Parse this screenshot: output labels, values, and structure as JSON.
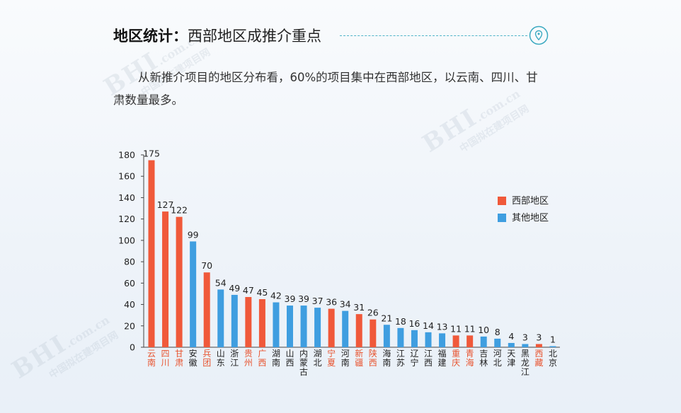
{
  "header": {
    "title_bold": "地区统计：",
    "title_rest": "西部地区成推介重点",
    "pin_icon": "location-pin-icon",
    "accent_color": "#3aa9c0"
  },
  "intro": {
    "text": "从新推介项目的地区分布看，60%的项目集中在西部地区，以云南、四川、甘肃数量最多。"
  },
  "watermark": {
    "brand": "BHI",
    "domain": ".com.cn",
    "tagline": "中国拟在建项目网"
  },
  "chart_data": {
    "type": "bar",
    "title": "",
    "xlabel": "",
    "ylabel": "",
    "ylim": [
      0,
      180
    ],
    "yticks": [
      0,
      20,
      40,
      60,
      80,
      100,
      120,
      140,
      160,
      180
    ],
    "grid": false,
    "legend_position": "right",
    "legend": [
      {
        "key": "west",
        "name": "西部地区",
        "color": "#f0593a"
      },
      {
        "key": "other",
        "name": "其他地区",
        "color": "#3f9ee0"
      }
    ],
    "categories": [
      "云南",
      "四川",
      "甘肃",
      "安徽",
      "兵团",
      "山东",
      "浙江",
      "贵州",
      "广西",
      "湖南",
      "山西",
      "内蒙古",
      "湖北",
      "宁夏",
      "河南",
      "新疆",
      "陕西",
      "海南",
      "江苏",
      "辽宁",
      "江西",
      "福建",
      "重庆",
      "青海",
      "吉林",
      "河北",
      "天津",
      "黑龙江",
      "西藏",
      "北京"
    ],
    "values": [
      175,
      127,
      122,
      99,
      70,
      54,
      49,
      47,
      45,
      42,
      39,
      39,
      37,
      36,
      34,
      31,
      26,
      21,
      18,
      16,
      14,
      13,
      11,
      11,
      10,
      8,
      4,
      3,
      3,
      1
    ],
    "region": [
      "west",
      "west",
      "west",
      "other",
      "west",
      "other",
      "other",
      "west",
      "west",
      "other",
      "other",
      "other",
      "other",
      "west",
      "other",
      "west",
      "west",
      "other",
      "other",
      "other",
      "other",
      "other",
      "west",
      "west",
      "other",
      "other",
      "other",
      "other",
      "west",
      "other"
    ]
  }
}
